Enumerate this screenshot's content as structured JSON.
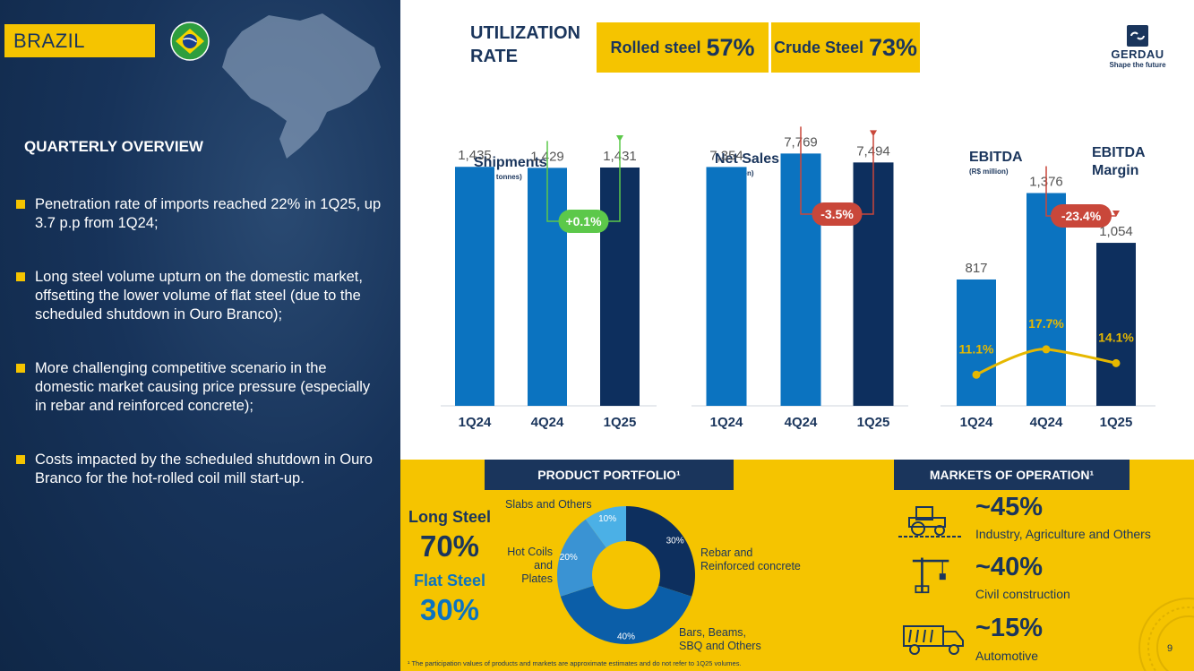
{
  "header": {
    "country": "BRAZIL",
    "utilization_title_line1": "UTILIZATION",
    "utilization_title_line2": "RATE",
    "rolled_label": "Rolled steel",
    "rolled_value": "57%",
    "crude_label": "Crude Steel",
    "crude_value": "73%"
  },
  "logo": {
    "name": "GERDAU",
    "tagline": "Shape the future"
  },
  "overview": {
    "title": "QUARTERLY OVERVIEW",
    "bullets": [
      "Penetration rate of imports reached 22% in 1Q25, up 3.7 p.p from 1Q24;",
      "Long steel volume upturn on the domestic market, offsetting the lower volume of flat steel (due to the scheduled shutdown in Ouro Branco);",
      "More challenging competitive scenario in the domestic market causing price pressure (especially in rebar and reinforced concrete);",
      "Costs impacted by the scheduled shutdown in Ouro Branco for the hot-rolled coil mill start-up."
    ]
  },
  "chart_data": [
    {
      "type": "bar",
      "title": "Shipments",
      "subtitle": "(1,000 tonnes)",
      "categories": [
        "1Q24",
        "4Q24",
        "1Q25"
      ],
      "values": [
        1435,
        1429,
        1431
      ],
      "value_labels": [
        "1,435",
        "1,429",
        "1,431"
      ],
      "variation": "+0.1%",
      "variation_color": "#5cc84a",
      "bar_colors": [
        "#0b73c0",
        "#0b73c0",
        "#0d2f5e"
      ],
      "ylim": [
        0,
        1560
      ]
    },
    {
      "type": "bar",
      "title": "Net Sales",
      "subtitle": "(R$ million)",
      "categories": [
        "1Q24",
        "4Q24",
        "1Q25"
      ],
      "values": [
        7354,
        7769,
        7494
      ],
      "value_labels": [
        "7,354",
        "7,769",
        "7,494"
      ],
      "variation": "-3.5%",
      "variation_color": "#c9473a",
      "bar_colors": [
        "#0b73c0",
        "#0b73c0",
        "#0d2f5e"
      ],
      "ylim": [
        0,
        8000
      ]
    },
    {
      "type": "bar",
      "title": "EBITDA",
      "subtitle": "(R$ million)",
      "secondary_title_line1": "EBITDA",
      "secondary_title_line2": "Margin",
      "categories": [
        "1Q24",
        "4Q24",
        "1Q25"
      ],
      "values": [
        817,
        1376,
        1054
      ],
      "value_labels": [
        "817",
        "1,376",
        "1,054"
      ],
      "margin": [
        11.1,
        17.7,
        14.1
      ],
      "margin_labels": [
        "11.1%",
        "17.7%",
        "14.1%"
      ],
      "variation": "-23.4%",
      "variation_color": "#c9473a",
      "bar_colors": [
        "#0b73c0",
        "#0b73c0",
        "#0d2f5e"
      ],
      "ylim": [
        0,
        1680
      ]
    },
    {
      "type": "pie",
      "title": "PRODUCT PORTFOLIO¹",
      "slices": [
        {
          "label": "Rebar and Reinforced concrete",
          "value": 30,
          "pct": "30%",
          "color": "#0d2f5e"
        },
        {
          "label": "Bars, Beams, SBQ and Others",
          "value": 40,
          "pct": "40%",
          "color": "#0b5ea8"
        },
        {
          "label": "Hot Coils and Plates",
          "value": 20,
          "pct": "20%",
          "color": "#3a93d3"
        },
        {
          "label": "Slabs and Others",
          "value": 10,
          "pct": "10%",
          "color": "#4bb0e6"
        }
      ]
    }
  ],
  "portfolio": {
    "long_label": "Long Steel",
    "long_value": "70%",
    "flat_label": "Flat Steel",
    "flat_value": "30%",
    "label_slabs": "Slabs and Others",
    "label_rebar1": "Rebar and",
    "label_rebar2": "Reinforced concrete",
    "label_hot1": "Hot Coils",
    "label_hot2": "and",
    "label_hot3": "Plates",
    "label_bars1": "Bars, Beams,",
    "label_bars2": "SBQ and Others"
  },
  "markets": {
    "title": "MARKETS OF OPERATION¹",
    "items": [
      {
        "pct": "~45%",
        "label": "Industry, Agriculture and Others",
        "icon": "tractor-icon"
      },
      {
        "pct": "~40%",
        "label": "Civil construction",
        "icon": "crane-icon"
      },
      {
        "pct": "~15%",
        "label": "Automotive",
        "icon": "truck-icon"
      }
    ]
  },
  "footnote": "¹ The participation values of products and markets are approximate estimates and do not refer to 1Q25 volumes.",
  "page_number": "9",
  "colors": {
    "navy": "#1a355c",
    "yellow": "#f5c400",
    "blue": "#0b73c0",
    "dark_bar": "#0d2f5e",
    "margin_line": "#e6b800"
  }
}
